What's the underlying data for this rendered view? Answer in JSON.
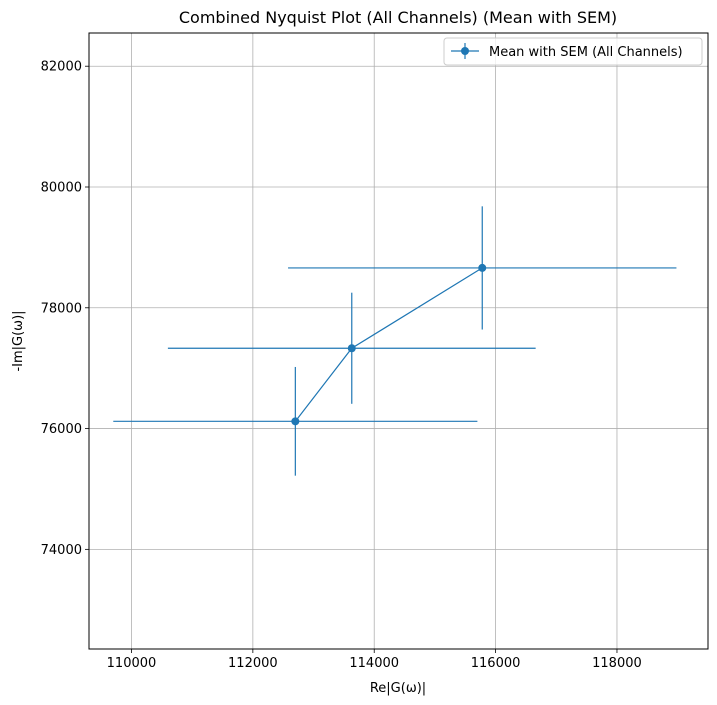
{
  "chart_data": {
    "type": "scatter",
    "title": "Combined Nyquist Plot (All Channels) (Mean with SEM)",
    "xlabel": "Re|G(ω)|",
    "ylabel": "-Im|G(ω)|",
    "xlim": [
      109300,
      119500
    ],
    "ylim": [
      72350,
      82550
    ],
    "x_ticks": [
      110000,
      112000,
      114000,
      116000,
      118000
    ],
    "y_ticks": [
      74000,
      76000,
      78000,
      80000,
      82000
    ],
    "x_tick_labels": [
      "110000",
      "112000",
      "114000",
      "116000",
      "118000"
    ],
    "y_tick_labels": [
      "74000",
      "76000",
      "78000",
      "80000",
      "82000"
    ],
    "grid": true,
    "legend_position": "top-right",
    "series": [
      {
        "name": "Mean with SEM (All Channels)",
        "color": "#1f77b4",
        "marker": "circle",
        "x": [
          112700,
          113630,
          115780
        ],
        "y": [
          76120,
          77330,
          78660
        ],
        "x_err": [
          3000,
          3030,
          3200
        ],
        "y_err": [
          900,
          920,
          1020
        ]
      }
    ]
  }
}
